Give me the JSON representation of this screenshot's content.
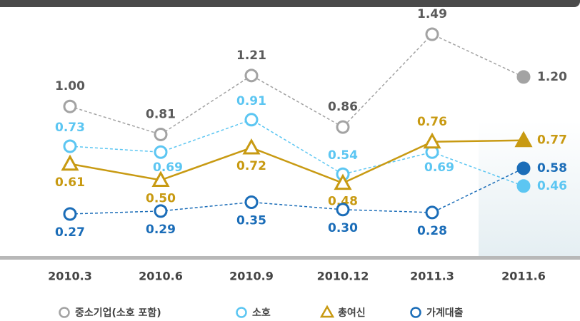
{
  "chart_data": {
    "type": "line",
    "categories": [
      "2010.3",
      "2010.6",
      "2010.9",
      "2010.12",
      "2011.3",
      "2011.6"
    ],
    "series": [
      {
        "name": "중소기업(소호 포함)",
        "color": "#a3a3a3",
        "values": [
          1.0,
          0.81,
          1.21,
          0.86,
          1.49,
          1.2
        ],
        "value_labels": [
          "1.00",
          "0.81",
          "1.21",
          "0.86",
          "1.49",
          "1.20"
        ]
      },
      {
        "name": "소호",
        "color": "#5cc6f2",
        "values": [
          0.73,
          0.69,
          0.91,
          0.54,
          0.69,
          0.46
        ],
        "value_labels": [
          "0.73",
          "0.69",
          "0.91",
          "0.54",
          "0.69",
          "0.46"
        ]
      },
      {
        "name": "총여신",
        "color": "#c89a12",
        "values": [
          0.61,
          0.5,
          0.72,
          0.48,
          0.76,
          0.77
        ],
        "value_labels": [
          "0.61",
          "0.50",
          "0.72",
          "0.48",
          "0.76",
          "0.77"
        ]
      },
      {
        "name": "가계대출",
        "color": "#1b6db8",
        "values": [
          0.27,
          0.29,
          0.35,
          0.3,
          0.28,
          0.58
        ],
        "value_labels": [
          "0.27",
          "0.29",
          "0.35",
          "0.30",
          "0.28",
          "0.58"
        ]
      }
    ]
  }
}
